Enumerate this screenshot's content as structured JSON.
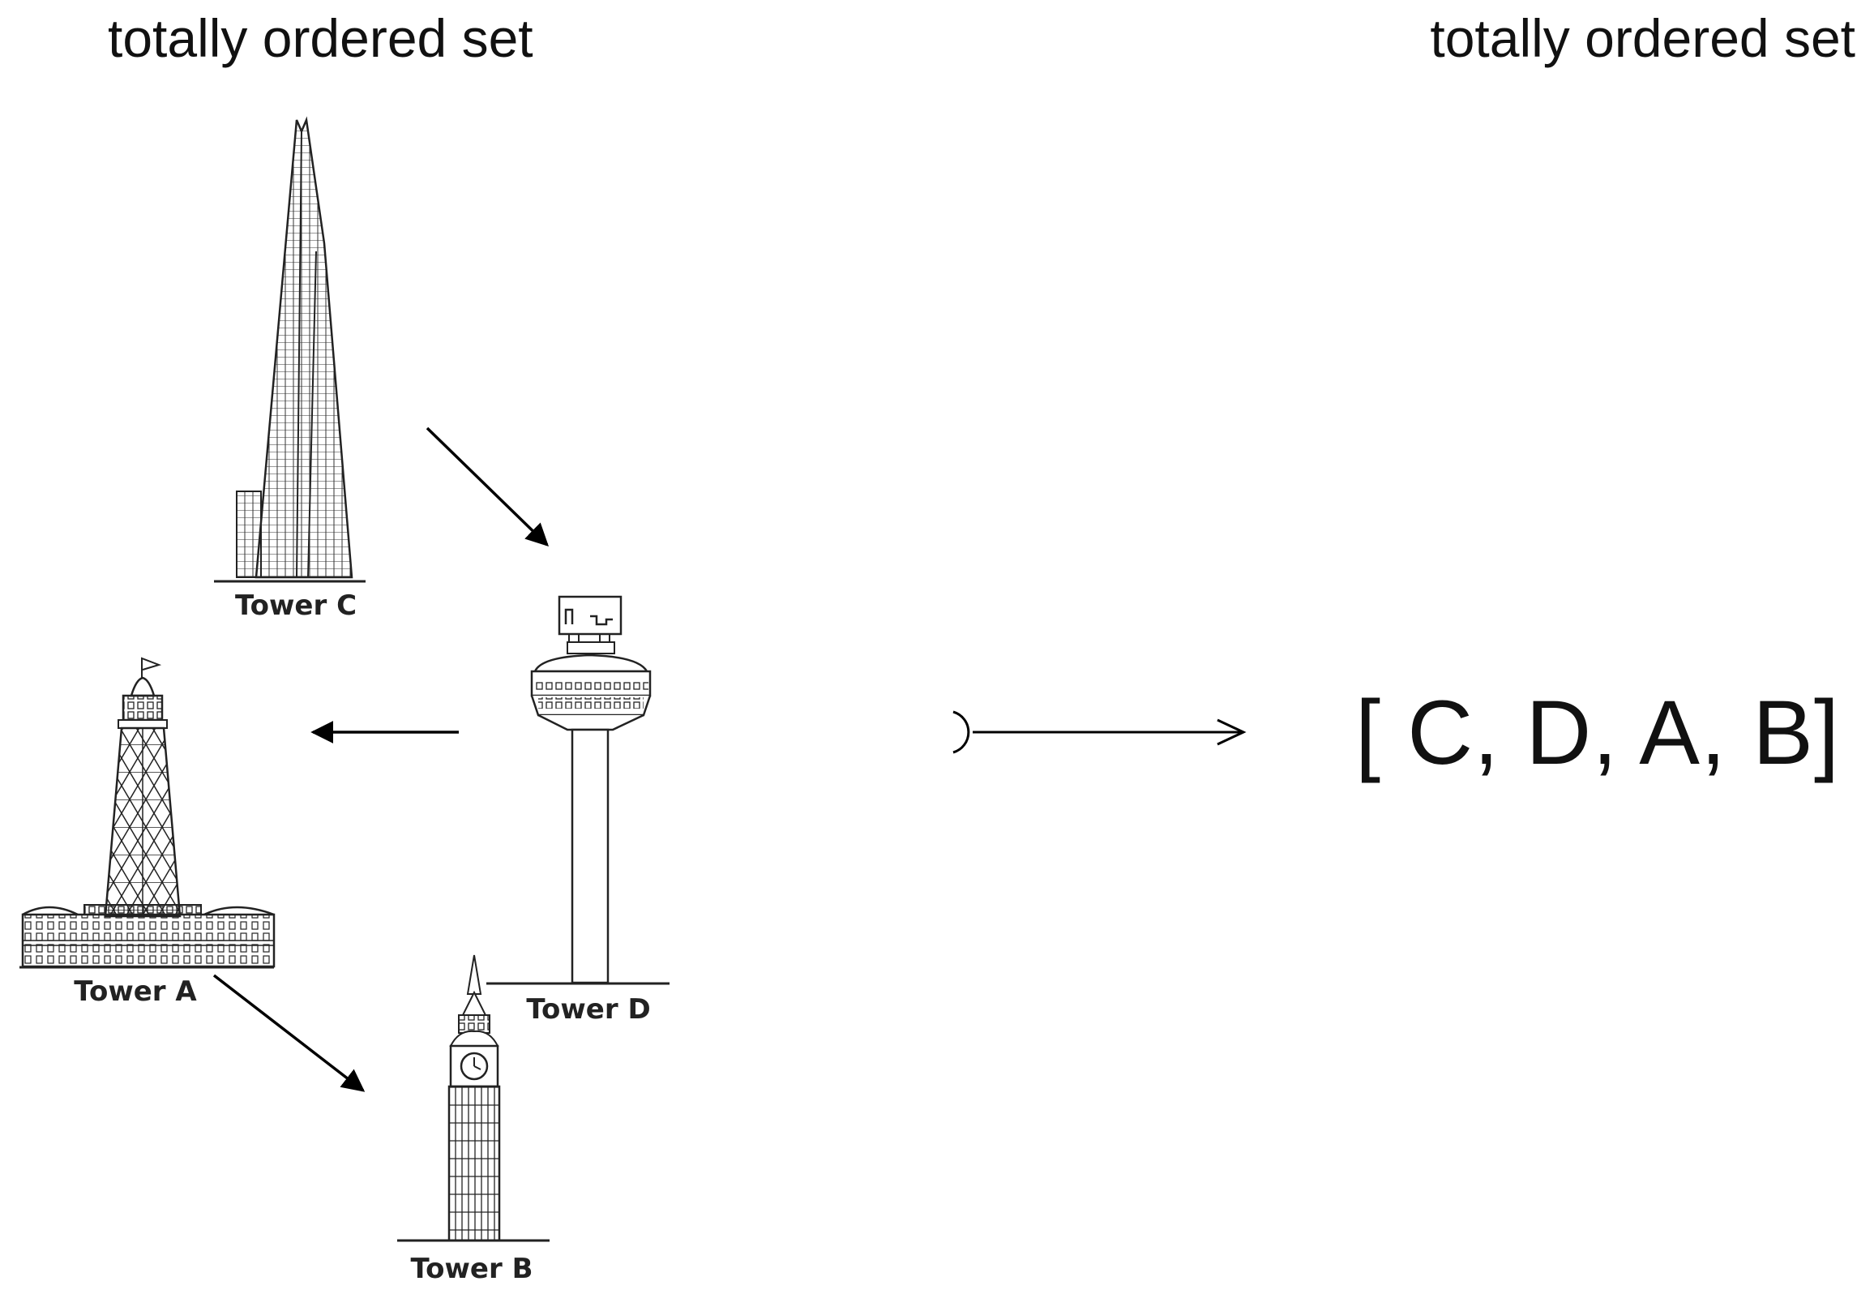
{
  "headings": {
    "left": "totally ordered set",
    "right": "totally ordered set"
  },
  "towers": {
    "c": "Tower C",
    "d": "Tower D",
    "a": "Tower A",
    "b": "Tower B"
  },
  "ordered_list": "[ C, D, A, B]"
}
